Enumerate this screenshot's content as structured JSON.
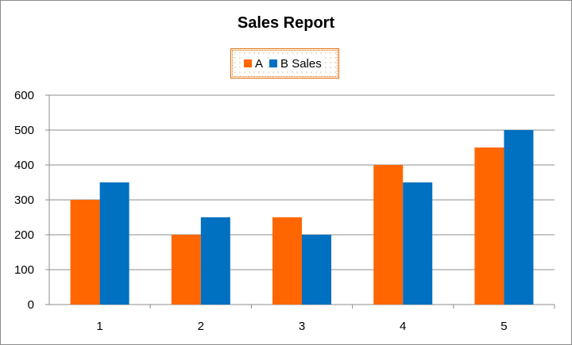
{
  "chart_data": {
    "type": "bar",
    "title": "Sales Report",
    "xlabel": "",
    "ylabel": "",
    "categories": [
      "1",
      "2",
      "3",
      "4",
      "5"
    ],
    "series": [
      {
        "name": "A",
        "color": "#ff6600",
        "values": [
          300,
          200,
          250,
          400,
          450
        ]
      },
      {
        "name": "B Sales",
        "color": "#0070c0",
        "values": [
          350,
          250,
          200,
          350,
          500
        ]
      }
    ],
    "ylim": [
      0,
      600
    ],
    "yticks": [
      0,
      100,
      200,
      300,
      400,
      500,
      600
    ],
    "grid": true,
    "legend_position": "top"
  }
}
